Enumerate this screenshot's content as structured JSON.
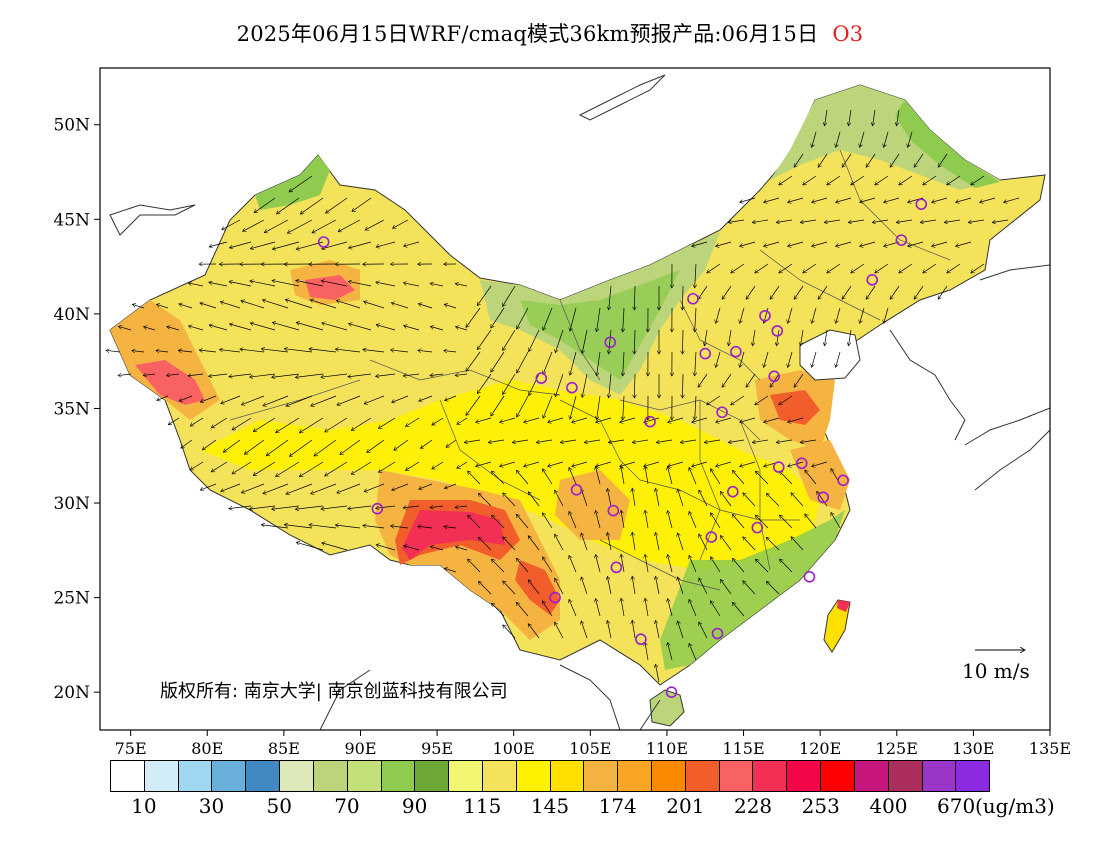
{
  "header": {
    "title": "2025年06月15日WRF/cmaq模式36km预报产品:06月15日",
    "species": "O3"
  },
  "map": {
    "lat_labels": [
      "50N",
      "45N",
      "40N",
      "35N",
      "30N",
      "25N",
      "20N"
    ],
    "lat_values": [
      50,
      45,
      40,
      35,
      30,
      25,
      20
    ],
    "lon_labels": [
      "75E",
      "80E",
      "85E",
      "90E",
      "95E",
      "100E",
      "105E",
      "110E",
      "115E",
      "120E",
      "125E",
      "130E",
      "135E"
    ],
    "lon_values": [
      75,
      80,
      85,
      90,
      95,
      100,
      105,
      110,
      115,
      120,
      125,
      130,
      135
    ],
    "lon_range": [
      73,
      135
    ],
    "lat_range": [
      18,
      53
    ],
    "copyright": "版权所有: 南京大学| 南京创蓝科技有限公司",
    "wind_reference": "10 m/s",
    "stations": [
      {
        "lon": 87.6,
        "lat": 43.8
      },
      {
        "lon": 91.1,
        "lat": 29.7
      },
      {
        "lon": 101.8,
        "lat": 36.6
      },
      {
        "lon": 103.8,
        "lat": 36.1
      },
      {
        "lon": 106.3,
        "lat": 38.5
      },
      {
        "lon": 111.7,
        "lat": 40.8
      },
      {
        "lon": 112.5,
        "lat": 37.9
      },
      {
        "lon": 114.5,
        "lat": 38.0
      },
      {
        "lon": 116.4,
        "lat": 39.9
      },
      {
        "lon": 117.2,
        "lat": 39.1
      },
      {
        "lon": 117.0,
        "lat": 36.7
      },
      {
        "lon": 113.6,
        "lat": 34.8
      },
      {
        "lon": 108.9,
        "lat": 34.3
      },
      {
        "lon": 104.1,
        "lat": 30.7
      },
      {
        "lon": 106.5,
        "lat": 29.6
      },
      {
        "lon": 106.7,
        "lat": 26.6
      },
      {
        "lon": 102.7,
        "lat": 25.0
      },
      {
        "lon": 108.3,
        "lat": 22.8
      },
      {
        "lon": 110.3,
        "lat": 20.0
      },
      {
        "lon": 113.3,
        "lat": 23.1
      },
      {
        "lon": 112.9,
        "lat": 28.2
      },
      {
        "lon": 114.3,
        "lat": 30.6
      },
      {
        "lon": 115.9,
        "lat": 28.7
      },
      {
        "lon": 117.3,
        "lat": 31.9
      },
      {
        "lon": 118.8,
        "lat": 32.1
      },
      {
        "lon": 120.2,
        "lat": 30.3
      },
      {
        "lon": 121.5,
        "lat": 31.2
      },
      {
        "lon": 119.3,
        "lat": 26.1
      },
      {
        "lon": 123.4,
        "lat": 41.8
      },
      {
        "lon": 125.3,
        "lat": 43.9
      },
      {
        "lon": 126.6,
        "lat": 45.8
      }
    ]
  },
  "legend": {
    "colors": [
      "#ffffff",
      "#d2ecf8",
      "#9fd7f3",
      "#69afdb",
      "#4189c0",
      "#dce8b8",
      "#bdd57a",
      "#c4e07a",
      "#8ecb4f",
      "#6ea838",
      "#f1f770",
      "#f3e25a",
      "#fff200",
      "#ffe000",
      "#f5b342",
      "#fba524",
      "#fb8a00",
      "#f15e2c",
      "#f96262",
      "#f22f55",
      "#f20649",
      "#ff0000",
      "#c8167f",
      "#ab2e5e",
      "#9b35c8",
      "#8a2be2"
    ],
    "labels": [
      "10",
      "30",
      "50",
      "70",
      "90",
      "115",
      "145",
      "174",
      "201",
      "228",
      "253",
      "400",
      "670"
    ],
    "unit": "(ug/m3)"
  }
}
